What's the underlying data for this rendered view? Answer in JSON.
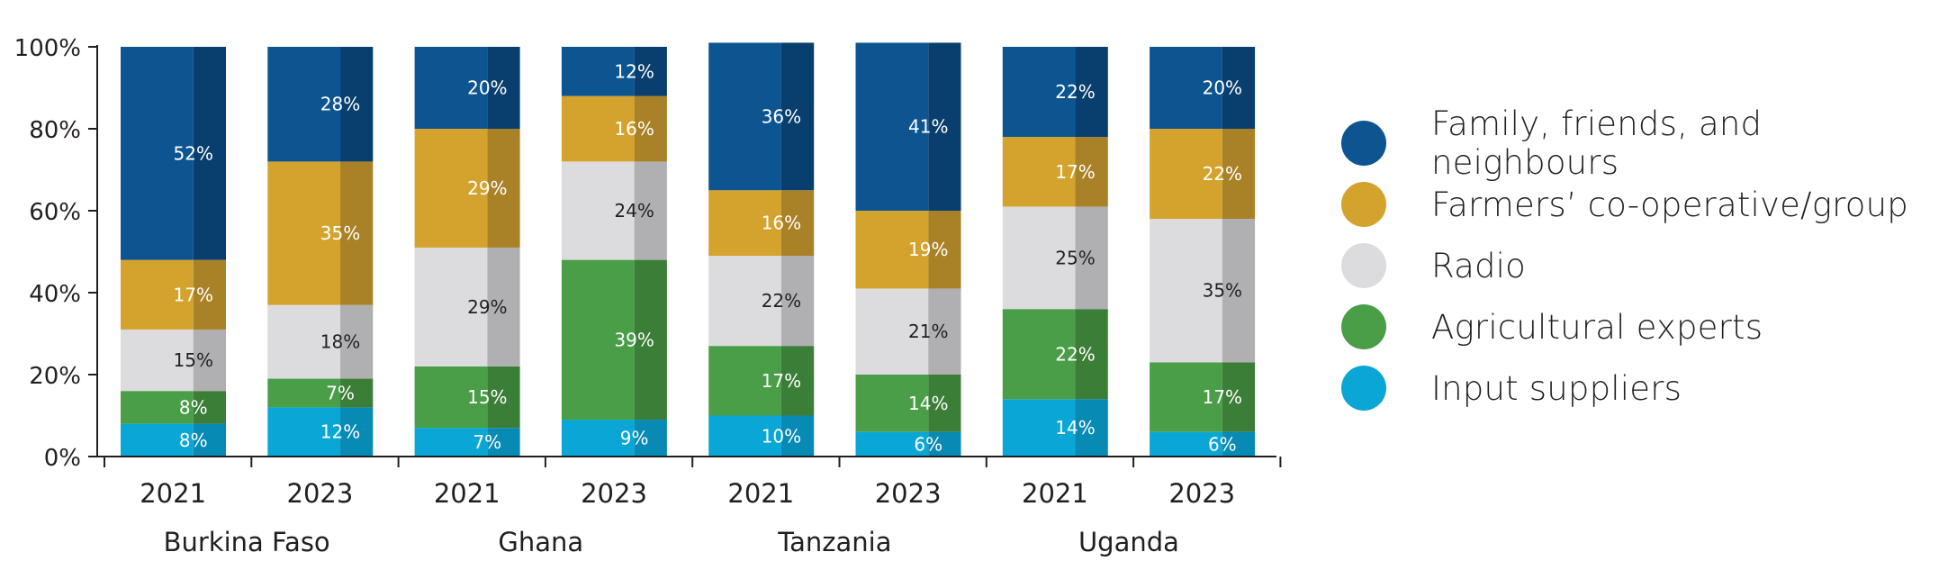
{
  "chart_data": {
    "type": "bar",
    "stacked": true,
    "y_tick_labels": [
      "0%",
      "20%",
      "40%",
      "60%",
      "80%",
      "100%"
    ],
    "ylim": [
      0,
      100
    ],
    "categories": [
      "2021",
      "2023",
      "2021",
      "2023",
      "2021",
      "2023",
      "2021",
      "2023"
    ],
    "groups": [
      {
        "name": "Burkina Faso",
        "span": [
          0,
          1
        ]
      },
      {
        "name": "Ghana",
        "span": [
          2,
          3
        ]
      },
      {
        "name": "Tanzania",
        "span": [
          4,
          5
        ]
      },
      {
        "name": "Uganda",
        "span": [
          6,
          7
        ]
      }
    ],
    "series": [
      {
        "name": "Input suppliers",
        "color": "#0aa6d6",
        "dark": "#078ab4",
        "label_color": "#ffffff",
        "values": [
          8,
          12,
          7,
          9,
          10,
          6,
          14,
          6
        ]
      },
      {
        "name": "Agricultural experts",
        "color": "#4a9e47",
        "dark": "#3b7e37",
        "label_color": "#ffffff",
        "values": [
          8,
          7,
          15,
          39,
          17,
          14,
          22,
          17
        ]
      },
      {
        "name": "Radio",
        "color": "#dcdcde",
        "dark": "#b0b0b2",
        "label_color": "#231f20",
        "values": [
          15,
          18,
          29,
          24,
          22,
          21,
          25,
          35
        ]
      },
      {
        "name": "Farmers’ co-operative/group",
        "color": "#d3a32e",
        "dark": "#a98126",
        "label_color": "#ffffff",
        "values": [
          17,
          35,
          29,
          16,
          16,
          19,
          17,
          22
        ]
      },
      {
        "name": "Family, friends, and neighbours",
        "color": "#0d5591",
        "dark": "#083f6e",
        "label_color": "#ffffff",
        "values": [
          52,
          28,
          20,
          12,
          36,
          41,
          22,
          20
        ]
      }
    ],
    "legend_position": "right",
    "grid": false
  },
  "legend": {
    "items": [
      {
        "label": "Family, friends, and neighbours",
        "color": "#0d5591"
      },
      {
        "label": "Farmers’ co-operative/group",
        "color": "#d3a32e"
      },
      {
        "label": "Radio",
        "color": "#dcdcde"
      },
      {
        "label": "Agricultural experts",
        "color": "#4a9e47"
      },
      {
        "label": "Input suppliers",
        "color": "#0aa6d6"
      }
    ]
  }
}
